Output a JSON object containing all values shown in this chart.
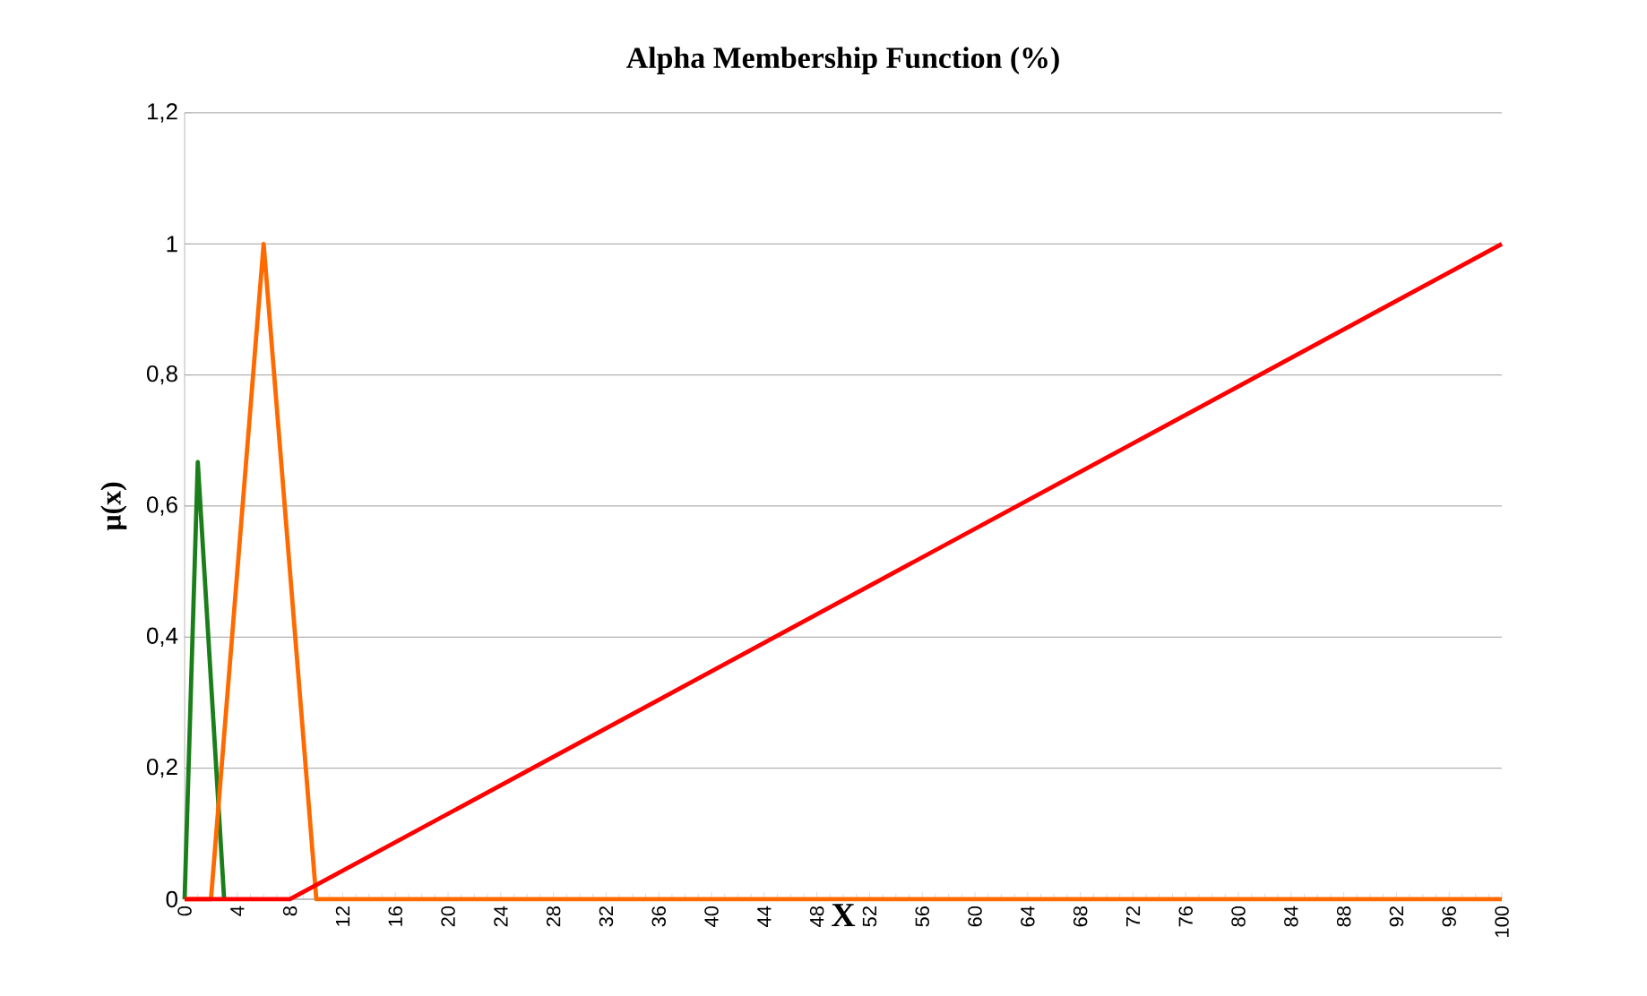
{
  "chart_data": {
    "type": "line",
    "title": "Alpha Membership Function (%)",
    "xlabel": "X",
    "ylabel": "μ(x)",
    "xlim": [
      0,
      100
    ],
    "xticks": [
      0,
      4,
      8,
      12,
      16,
      20,
      24,
      28,
      32,
      36,
      40,
      44,
      48,
      52,
      56,
      60,
      64,
      68,
      72,
      76,
      80,
      84,
      88,
      92,
      96,
      100
    ],
    "ylim": [
      0,
      1.2
    ],
    "yticks": [
      0,
      {
        "value": 0.2,
        "label": "0,2"
      },
      {
        "value": 0.4,
        "label": "0,4"
      },
      {
        "value": 0.6,
        "label": "0,6"
      },
      {
        "value": 0.8,
        "label": "0,8"
      },
      1,
      {
        "value": 1.2,
        "label": "1,2"
      }
    ],
    "grid": "y",
    "marker": "none",
    "line_style": "solid",
    "series": [
      {
        "color": "#1a7f1a",
        "x": [
          0,
          1,
          3
        ],
        "values": [
          0,
          0.667,
          0
        ]
      },
      {
        "color": "#ff6a00",
        "x": [
          0,
          2,
          6,
          10,
          100
        ],
        "values": [
          0,
          0,
          1,
          0,
          0
        ]
      },
      {
        "color": "#ff0000",
        "x": [
          0,
          8,
          100
        ],
        "values": [
          0,
          0,
          1
        ]
      }
    ]
  }
}
